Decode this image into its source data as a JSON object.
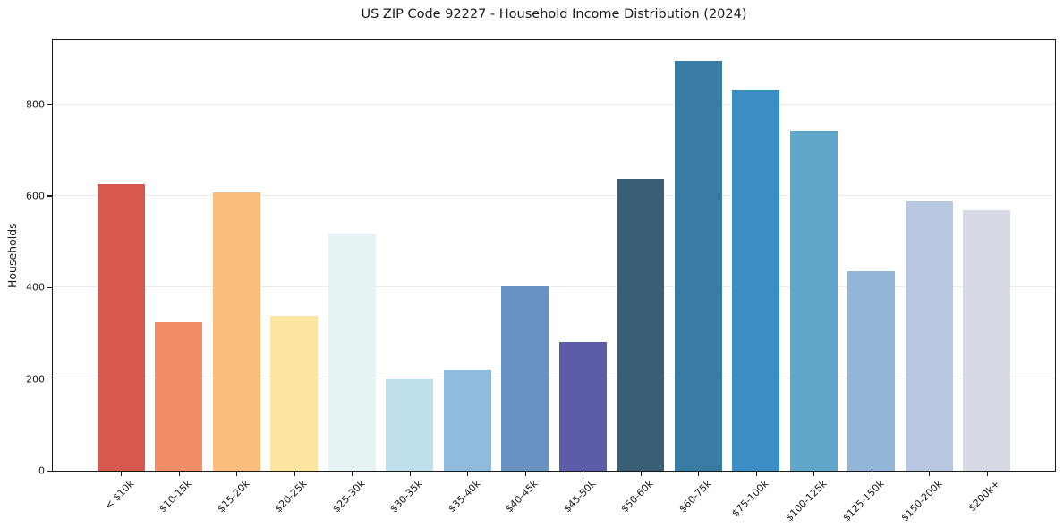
{
  "chart_data": {
    "type": "bar",
    "title": "US ZIP Code 92227 - Household Income Distribution (2024)",
    "xlabel": "",
    "ylabel": "Households",
    "categories": [
      "< $10k",
      "$10-15k",
      "$15-20k",
      "$20-25k",
      "$25-30k",
      "$30-35k",
      "$35-40k",
      "$40-45k",
      "$45-50k",
      "$50-60k",
      "$60-75k",
      "$75-100k",
      "$100-125k",
      "$125-150k",
      "$150-200k",
      "$200k+"
    ],
    "values": [
      626,
      325,
      608,
      339,
      518,
      201,
      220,
      402,
      282,
      638,
      895,
      830,
      743,
      435,
      588,
      569
    ],
    "bar_colors": [
      "#d6584f",
      "#f58c69",
      "#fbbd7e",
      "#fde59f",
      "#e7f2f5",
      "#c0dfed",
      "#8fbcdc",
      "#6a91c4",
      "#5d5ca8",
      "#3a5e76",
      "#387ba3",
      "#3a8ec4",
      "#60a7cb",
      "#93b5d7",
      "#b7c8e0",
      "#d7d9e5"
    ],
    "ylim": [
      0,
      940
    ],
    "yticks": [
      0,
      200,
      400,
      600,
      800
    ],
    "grid": "horizontal-only",
    "gridline_color": "#ececec",
    "legend_position": "none",
    "x_tick_rotation_deg": 45
  }
}
